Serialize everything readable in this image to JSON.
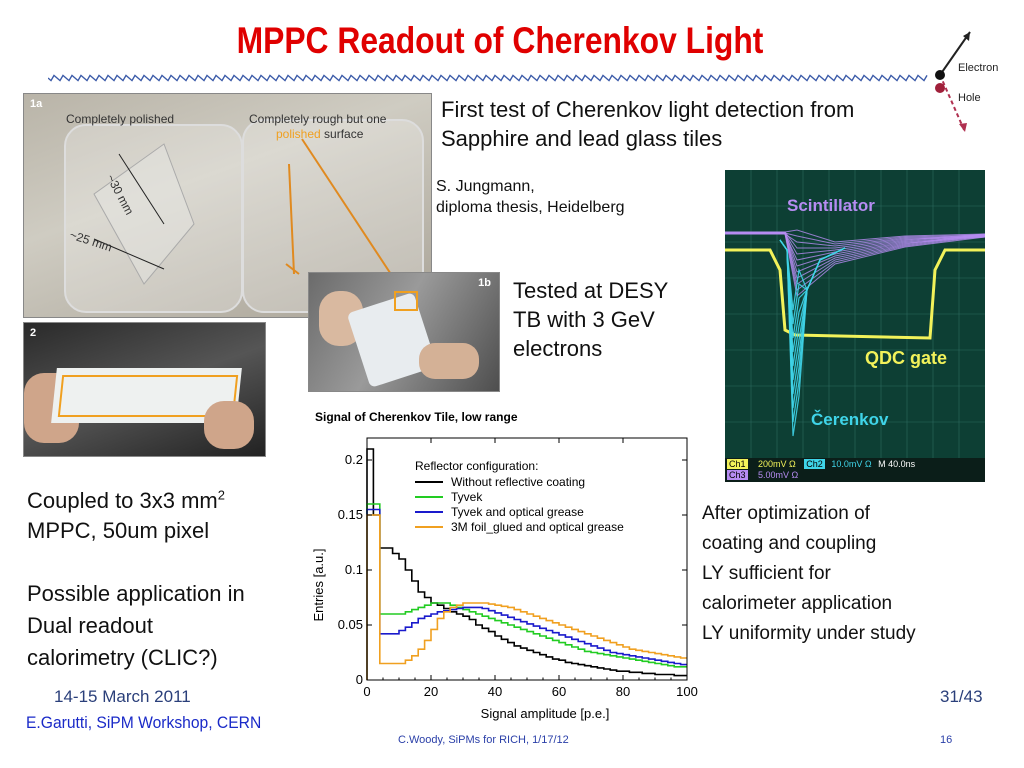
{
  "title": "MPPC Readout of Cherenkov Light",
  "diagram": {
    "electron_label": "Electron",
    "hole_label": "Hole"
  },
  "photo1a": {
    "tag": "1a",
    "left_caption": "Completely polished",
    "right_caption_line1": "Completely rough but one",
    "right_caption_polished": "polished",
    "right_caption_rest": " surface",
    "dim1": "~30 mm",
    "dim2": "~25 mm"
  },
  "photo1b": {
    "tag": "1b"
  },
  "photo2": {
    "tag": "2"
  },
  "text": {
    "first_test_line1": "First test of Cherenkov light detection from",
    "first_test_line2": "Sapphire and lead glass tiles",
    "thesis_line1": "S. Jungmann,",
    "thesis_line2": "diploma thesis, Heidelberg",
    "desy_line1": "Tested at DESY",
    "desy_line2": "TB with 3 GeV",
    "desy_line3": "electrons",
    "coupled_line1": "Coupled to 3x3 mm",
    "coupled_sup": "2",
    "coupled_line2": "MPPC, 50um pixel",
    "possible_line1": "Possible application in",
    "possible_line2": "Dual readout",
    "possible_line3": "calorimetry (CLIC?)",
    "after_line1": "After optimization of",
    "after_line2": "coating and coupling",
    "after_line3": "LY sufficient for",
    "after_line4": "calorimeter application",
    "after_line5": "LY uniformity under study"
  },
  "scope": {
    "scint_label": "Scintillator",
    "qdc_label": "QDC gate",
    "cerenkov_label": "Čerenkov",
    "status_row1": [
      "Ch1",
      "200mV Ω",
      "Ch2",
      "10.0mV Ω",
      "M 40.0ns"
    ],
    "status_row2": [
      "Ch3",
      "5.00mV Ω"
    ],
    "colors": {
      "scint": "#b68cf2",
      "qdc": "#f2f25a",
      "cerenkov": "#3fd4e8",
      "bg": "#0d3f34"
    }
  },
  "chart_data": {
    "type": "line",
    "title": "Signal of Cherenkov Tile, low range",
    "xlabel": "Signal amplitude [p.e.]",
    "ylabel": "Entries [a.u.]",
    "xlim": [
      0,
      100
    ],
    "ylim": [
      0,
      0.22
    ],
    "xticks": [
      0,
      20,
      40,
      60,
      80,
      100
    ],
    "yticks": [
      0,
      0.05,
      0.1,
      0.15,
      0.2
    ],
    "ytick_labels": [
      "0",
      "0.05",
      "0.1",
      "0.15",
      "0.2"
    ],
    "legend_title": "Reflector configuration:",
    "legend_position": "top-right",
    "x": [
      0,
      2,
      4,
      6,
      8,
      10,
      12,
      14,
      16,
      18,
      20,
      22,
      24,
      26,
      28,
      30,
      32,
      34,
      36,
      38,
      40,
      42,
      44,
      46,
      48,
      50,
      52,
      54,
      56,
      58,
      60,
      62,
      64,
      66,
      68,
      70,
      72,
      74,
      76,
      78,
      80,
      82,
      84,
      86,
      88,
      90,
      92,
      94,
      96,
      98
    ],
    "series": [
      {
        "name": "Without reflective coating",
        "color": "#000000",
        "values": [
          0.21,
          0.15,
          0.12,
          0.12,
          0.115,
          0.11,
          0.1,
          0.09,
          0.08,
          0.075,
          0.07,
          0.068,
          0.065,
          0.062,
          0.06,
          0.058,
          0.055,
          0.05,
          0.047,
          0.044,
          0.04,
          0.037,
          0.034,
          0.031,
          0.029,
          0.027,
          0.025,
          0.023,
          0.021,
          0.019,
          0.018,
          0.016,
          0.015,
          0.014,
          0.013,
          0.012,
          0.011,
          0.01,
          0.009,
          0.008,
          0.008,
          0.007,
          0.007,
          0.006,
          0.006,
          0.005,
          0.005,
          0.005,
          0.004,
          0.004
        ]
      },
      {
        "name": "Tyvek",
        "color": "#22cc22",
        "values": [
          0.16,
          0.16,
          0.06,
          0.06,
          0.06,
          0.06,
          0.062,
          0.064,
          0.066,
          0.068,
          0.07,
          0.07,
          0.07,
          0.068,
          0.066,
          0.064,
          0.062,
          0.06,
          0.058,
          0.056,
          0.054,
          0.052,
          0.05,
          0.048,
          0.046,
          0.044,
          0.042,
          0.04,
          0.038,
          0.036,
          0.034,
          0.032,
          0.03,
          0.028,
          0.026,
          0.025,
          0.024,
          0.023,
          0.022,
          0.021,
          0.02,
          0.019,
          0.018,
          0.017,
          0.016,
          0.015,
          0.014,
          0.013,
          0.012,
          0.012
        ]
      },
      {
        "name": "Tyvek and optical grease",
        "color": "#1a1acc",
        "values": [
          0.155,
          0.155,
          0.042,
          0.042,
          0.042,
          0.045,
          0.048,
          0.052,
          0.056,
          0.058,
          0.06,
          0.062,
          0.063,
          0.064,
          0.065,
          0.066,
          0.066,
          0.066,
          0.065,
          0.063,
          0.061,
          0.059,
          0.057,
          0.055,
          0.053,
          0.051,
          0.049,
          0.047,
          0.045,
          0.043,
          0.041,
          0.039,
          0.037,
          0.035,
          0.033,
          0.031,
          0.029,
          0.027,
          0.025,
          0.024,
          0.023,
          0.022,
          0.021,
          0.02,
          0.019,
          0.018,
          0.017,
          0.016,
          0.015,
          0.014
        ]
      },
      {
        "name": "3M foil_glued and optical grease",
        "color": "#f0a020",
        "values": [
          0.15,
          0.15,
          0.015,
          0.015,
          0.015,
          0.015,
          0.018,
          0.022,
          0.028,
          0.036,
          0.046,
          0.056,
          0.062,
          0.066,
          0.068,
          0.07,
          0.07,
          0.07,
          0.07,
          0.069,
          0.068,
          0.067,
          0.066,
          0.064,
          0.062,
          0.06,
          0.058,
          0.056,
          0.054,
          0.052,
          0.05,
          0.048,
          0.046,
          0.044,
          0.042,
          0.04,
          0.038,
          0.036,
          0.034,
          0.032,
          0.03,
          0.028,
          0.027,
          0.026,
          0.025,
          0.024,
          0.023,
          0.022,
          0.021,
          0.02
        ]
      }
    ]
  },
  "footer": {
    "date": "14-15 March 2011",
    "page": "31/43",
    "author": "E.Garutti, SiPM Workshop, CERN",
    "center": "C.Woody, SiPMs for RICH, 1/17/12",
    "num": "16"
  }
}
